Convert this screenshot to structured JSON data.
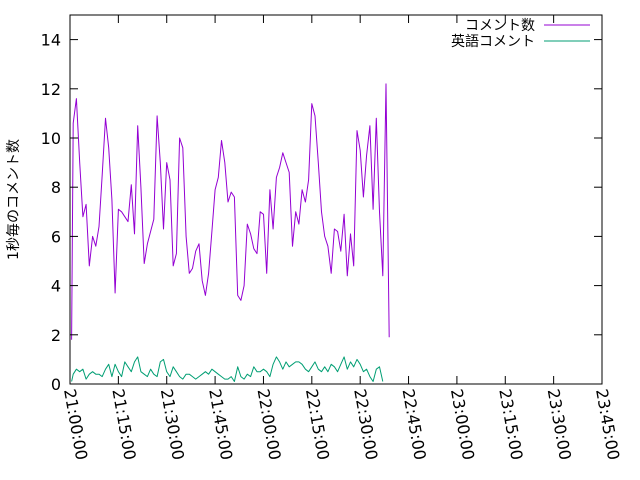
{
  "chart_data": {
    "type": "line",
    "ylabel": "1秒毎のコメント数",
    "ylim": [
      0,
      15
    ],
    "yticks": [
      0,
      2,
      4,
      6,
      8,
      10,
      12,
      14
    ],
    "xlim": [
      "21:00:00",
      "23:45:00"
    ],
    "xticks": [
      "21:00:00",
      "21:15:00",
      "21:30:00",
      "21:45:00",
      "22:00:00",
      "22:15:00",
      "22:30:00",
      "22:45:00",
      "23:00:00",
      "23:15:00",
      "23:30:00",
      "23:45:00"
    ],
    "legend_position": "top-right",
    "grid": false,
    "series": [
      {
        "name": "コメント数",
        "color": "#9400d3",
        "points": [
          [
            "21:00:30",
            1.8
          ],
          [
            "21:01:00",
            10.6
          ],
          [
            "21:02:00",
            11.6
          ],
          [
            "21:03:00",
            9.0
          ],
          [
            "21:04:00",
            6.8
          ],
          [
            "21:05:00",
            7.3
          ],
          [
            "21:06:00",
            4.8
          ],
          [
            "21:07:00",
            6.0
          ],
          [
            "21:08:00",
            5.6
          ],
          [
            "21:09:00",
            6.4
          ],
          [
            "21:10:00",
            8.5
          ],
          [
            "21:11:00",
            10.8
          ],
          [
            "21:12:00",
            9.6
          ],
          [
            "21:13:00",
            7.5
          ],
          [
            "21:14:00",
            3.7
          ],
          [
            "21:15:00",
            7.1
          ],
          [
            "21:16:00",
            7.0
          ],
          [
            "21:17:00",
            6.8
          ],
          [
            "21:18:00",
            6.6
          ],
          [
            "21:19:00",
            8.1
          ],
          [
            "21:20:00",
            6.1
          ],
          [
            "21:21:00",
            10.5
          ],
          [
            "21:22:00",
            8.0
          ],
          [
            "21:23:00",
            4.9
          ],
          [
            "21:24:00",
            5.7
          ],
          [
            "21:25:00",
            6.2
          ],
          [
            "21:26:00",
            6.7
          ],
          [
            "21:27:00",
            10.9
          ],
          [
            "21:28:00",
            9.0
          ],
          [
            "21:29:00",
            6.3
          ],
          [
            "21:30:00",
            9.0
          ],
          [
            "21:31:00",
            8.3
          ],
          [
            "21:32:00",
            4.8
          ],
          [
            "21:33:00",
            5.3
          ],
          [
            "21:34:00",
            10.0
          ],
          [
            "21:35:00",
            9.6
          ],
          [
            "21:36:00",
            6.0
          ],
          [
            "21:37:00",
            4.5
          ],
          [
            "21:38:00",
            4.7
          ],
          [
            "21:39:00",
            5.4
          ],
          [
            "21:40:00",
            5.7
          ],
          [
            "21:41:00",
            4.2
          ],
          [
            "21:42:00",
            3.6
          ],
          [
            "21:43:00",
            4.5
          ],
          [
            "21:44:00",
            6.2
          ],
          [
            "21:45:00",
            7.9
          ],
          [
            "21:46:00",
            8.4
          ],
          [
            "21:47:00",
            9.9
          ],
          [
            "21:48:00",
            9.0
          ],
          [
            "21:49:00",
            7.4
          ],
          [
            "21:50:00",
            7.8
          ],
          [
            "21:51:00",
            7.6
          ],
          [
            "21:52:00",
            3.6
          ],
          [
            "21:53:00",
            3.4
          ],
          [
            "21:54:00",
            4.0
          ],
          [
            "21:55:00",
            6.5
          ],
          [
            "21:56:00",
            6.1
          ],
          [
            "21:57:00",
            5.5
          ],
          [
            "21:58:00",
            5.3
          ],
          [
            "21:59:00",
            7.0
          ],
          [
            "22:00:00",
            6.9
          ],
          [
            "22:01:00",
            4.5
          ],
          [
            "22:02:00",
            7.9
          ],
          [
            "22:03:00",
            6.3
          ],
          [
            "22:04:00",
            8.4
          ],
          [
            "22:05:00",
            8.8
          ],
          [
            "22:06:00",
            9.4
          ],
          [
            "22:07:00",
            9.0
          ],
          [
            "22:08:00",
            8.6
          ],
          [
            "22:09:00",
            5.6
          ],
          [
            "22:10:00",
            7.0
          ],
          [
            "22:11:00",
            6.5
          ],
          [
            "22:12:00",
            7.9
          ],
          [
            "22:13:00",
            7.4
          ],
          [
            "22:14:00",
            8.3
          ],
          [
            "22:15:00",
            11.4
          ],
          [
            "22:16:00",
            10.9
          ],
          [
            "22:17:00",
            9.0
          ],
          [
            "22:18:00",
            7.0
          ],
          [
            "22:19:00",
            6.0
          ],
          [
            "22:20:00",
            5.6
          ],
          [
            "22:21:00",
            4.5
          ],
          [
            "22:22:00",
            6.3
          ],
          [
            "22:23:00",
            6.2
          ],
          [
            "22:24:00",
            5.4
          ],
          [
            "22:25:00",
            6.9
          ],
          [
            "22:26:00",
            4.4
          ],
          [
            "22:27:00",
            6.1
          ],
          [
            "22:28:00",
            4.8
          ],
          [
            "22:29:00",
            10.3
          ],
          [
            "22:30:00",
            9.5
          ],
          [
            "22:31:00",
            7.6
          ],
          [
            "22:32:00",
            9.3
          ],
          [
            "22:33:00",
            10.5
          ],
          [
            "22:34:00",
            7.1
          ],
          [
            "22:35:00",
            10.8
          ],
          [
            "22:36:00",
            7.0
          ],
          [
            "22:37:00",
            4.4
          ],
          [
            "22:38:00",
            12.2
          ],
          [
            "22:39:00",
            1.9
          ]
        ]
      },
      {
        "name": "英語コメント",
        "color": "#009e73",
        "points": [
          [
            "21:00:30",
            0.1
          ],
          [
            "21:01:00",
            0.4
          ],
          [
            "21:02:00",
            0.6
          ],
          [
            "21:03:00",
            0.5
          ],
          [
            "21:04:00",
            0.6
          ],
          [
            "21:05:00",
            0.2
          ],
          [
            "21:06:00",
            0.4
          ],
          [
            "21:07:00",
            0.5
          ],
          [
            "21:08:00",
            0.4
          ],
          [
            "21:09:00",
            0.4
          ],
          [
            "21:10:00",
            0.3
          ],
          [
            "21:11:00",
            0.6
          ],
          [
            "21:12:00",
            0.8
          ],
          [
            "21:13:00",
            0.3
          ],
          [
            "21:14:00",
            0.8
          ],
          [
            "21:15:00",
            0.5
          ],
          [
            "21:16:00",
            0.3
          ],
          [
            "21:17:00",
            0.9
          ],
          [
            "21:18:00",
            0.7
          ],
          [
            "21:19:00",
            0.5
          ],
          [
            "21:20:00",
            0.9
          ],
          [
            "21:21:00",
            1.1
          ],
          [
            "21:22:00",
            0.5
          ],
          [
            "21:23:00",
            0.4
          ],
          [
            "21:24:00",
            0.3
          ],
          [
            "21:25:00",
            0.6
          ],
          [
            "21:26:00",
            0.4
          ],
          [
            "21:27:00",
            0.3
          ],
          [
            "21:28:00",
            0.9
          ],
          [
            "21:29:00",
            1.0
          ],
          [
            "21:30:00",
            0.5
          ],
          [
            "21:31:00",
            0.3
          ],
          [
            "21:32:00",
            0.7
          ],
          [
            "21:33:00",
            0.5
          ],
          [
            "21:34:00",
            0.3
          ],
          [
            "21:35:00",
            0.2
          ],
          [
            "21:36:00",
            0.4
          ],
          [
            "21:37:00",
            0.4
          ],
          [
            "21:38:00",
            0.3
          ],
          [
            "21:39:00",
            0.2
          ],
          [
            "21:40:00",
            0.3
          ],
          [
            "21:41:00",
            0.4
          ],
          [
            "21:42:00",
            0.5
          ],
          [
            "21:43:00",
            0.4
          ],
          [
            "21:44:00",
            0.6
          ],
          [
            "21:45:00",
            0.5
          ],
          [
            "21:46:00",
            0.4
          ],
          [
            "21:47:00",
            0.3
          ],
          [
            "21:48:00",
            0.2
          ],
          [
            "21:49:00",
            0.2
          ],
          [
            "21:50:00",
            0.3
          ],
          [
            "21:51:00",
            0.1
          ],
          [
            "21:52:00",
            0.7
          ],
          [
            "21:53:00",
            0.3
          ],
          [
            "21:54:00",
            0.2
          ],
          [
            "21:55:00",
            0.4
          ],
          [
            "21:56:00",
            0.3
          ],
          [
            "21:57:00",
            0.7
          ],
          [
            "21:58:00",
            0.5
          ],
          [
            "21:59:00",
            0.5
          ],
          [
            "22:00:00",
            0.6
          ],
          [
            "22:01:00",
            0.5
          ],
          [
            "22:02:00",
            0.3
          ],
          [
            "22:03:00",
            0.8
          ],
          [
            "22:04:00",
            1.1
          ],
          [
            "22:05:00",
            0.9
          ],
          [
            "22:06:00",
            0.6
          ],
          [
            "22:07:00",
            0.9
          ],
          [
            "22:08:00",
            0.7
          ],
          [
            "22:09:00",
            0.8
          ],
          [
            "22:10:00",
            0.9
          ],
          [
            "22:11:00",
            0.9
          ],
          [
            "22:12:00",
            0.8
          ],
          [
            "22:13:00",
            0.6
          ],
          [
            "22:14:00",
            0.5
          ],
          [
            "22:15:00",
            0.7
          ],
          [
            "22:16:00",
            0.9
          ],
          [
            "22:17:00",
            0.6
          ],
          [
            "22:18:00",
            0.5
          ],
          [
            "22:19:00",
            0.7
          ],
          [
            "22:20:00",
            0.5
          ],
          [
            "22:21:00",
            0.8
          ],
          [
            "22:22:00",
            0.7
          ],
          [
            "22:23:00",
            0.5
          ],
          [
            "22:24:00",
            0.8
          ],
          [
            "22:25:00",
            1.1
          ],
          [
            "22:26:00",
            0.6
          ],
          [
            "22:27:00",
            0.9
          ],
          [
            "22:28:00",
            0.7
          ],
          [
            "22:29:00",
            1.0
          ],
          [
            "22:30:00",
            0.8
          ],
          [
            "22:31:00",
            0.5
          ],
          [
            "22:32:00",
            0.6
          ],
          [
            "22:33:00",
            0.3
          ],
          [
            "22:34:00",
            0.1
          ],
          [
            "22:35:00",
            0.6
          ],
          [
            "22:36:00",
            0.7
          ],
          [
            "22:37:00",
            0.1
          ]
        ]
      }
    ]
  }
}
